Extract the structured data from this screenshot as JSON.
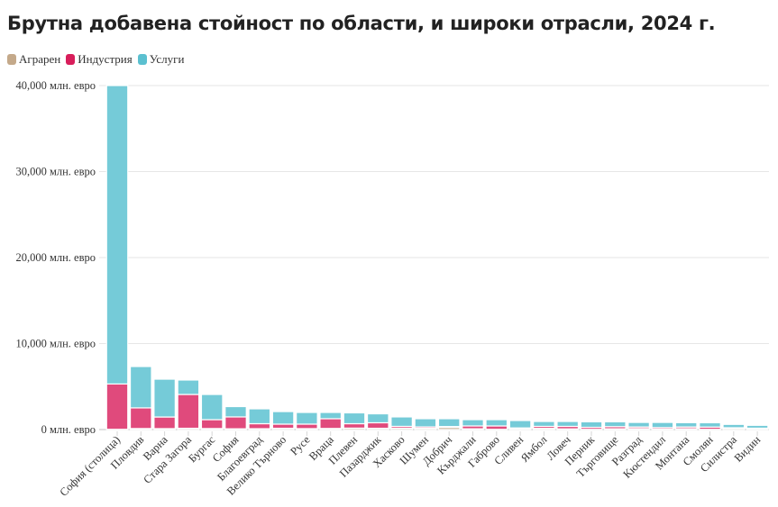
{
  "chart_data": {
    "type": "bar",
    "stacked": true,
    "title": "Брутна добавена стойност по области, и широки отрасли, 2024 г.",
    "xlabel": "",
    "ylabel": "",
    "ylim": [
      0,
      40000
    ],
    "y_ticks": [
      {
        "value": 0,
        "label": "0 млн. евро"
      },
      {
        "value": 10000,
        "label": "10,000 млн. евро"
      },
      {
        "value": 20000,
        "label": "20,000 млн. евро"
      },
      {
        "value": 30000,
        "label": "30,000 млн. евро"
      },
      {
        "value": 40000,
        "label": "40,000 млн. евро"
      }
    ],
    "grid": true,
    "legend_position": "top-left",
    "categories": [
      "София (столица)",
      "Пловдив",
      "Варна",
      "Стара Загора",
      "Бургас",
      "София",
      "Благоевград",
      "Велико Търново",
      "Русе",
      "Враца",
      "Плевен",
      "Пазарджик",
      "Хасково",
      "Шумен",
      "Добрич",
      "Кърджали",
      "Габрово",
      "Сливен",
      "Ямбол",
      "Ловеч",
      "Перник",
      "Търговище",
      "Разград",
      "Кюстендил",
      "Монтана",
      "Смолян",
      "Силистра",
      "Видин"
    ],
    "series": [
      {
        "name": "Аграрен",
        "color": "#c4a98a",
        "values": [
          30,
          120,
          110,
          150,
          120,
          90,
          100,
          150,
          110,
          130,
          170,
          150,
          160,
          150,
          260,
          90,
          30,
          120,
          140,
          80,
          30,
          90,
          110,
          60,
          100,
          30,
          150,
          110
        ]
      },
      {
        "name": "Индустрия",
        "color": "#d81e5b",
        "values": [
          5270,
          2400,
          1350,
          3930,
          1030,
          1380,
          580,
          480,
          520,
          1130,
          510,
          640,
          210,
          160,
          90,
          330,
          390,
          70,
          230,
          290,
          230,
          250,
          190,
          170,
          200,
          260,
          60,
          50
        ]
      },
      {
        "name": "Услуги",
        "color": "#5bc0d0",
        "values": [
          34700,
          4810,
          4400,
          1680,
          2930,
          1200,
          1730,
          1460,
          1360,
          730,
          1260,
          1040,
          1100,
          950,
          910,
          730,
          730,
          860,
          570,
          570,
          640,
          560,
          530,
          600,
          500,
          500,
          390,
          330
        ]
      }
    ]
  },
  "legend": {
    "items": [
      {
        "label": "Аграрен",
        "color": "#c4a98a"
      },
      {
        "label": "Индустрия",
        "color": "#d81e5b"
      },
      {
        "label": "Услуги",
        "color": "#5bc0d0"
      }
    ]
  },
  "bar_colors": {
    "Аграрен": "#cdb9a4",
    "Индустрия": "#e04a7c",
    "Услуги": "#75cbd8"
  }
}
